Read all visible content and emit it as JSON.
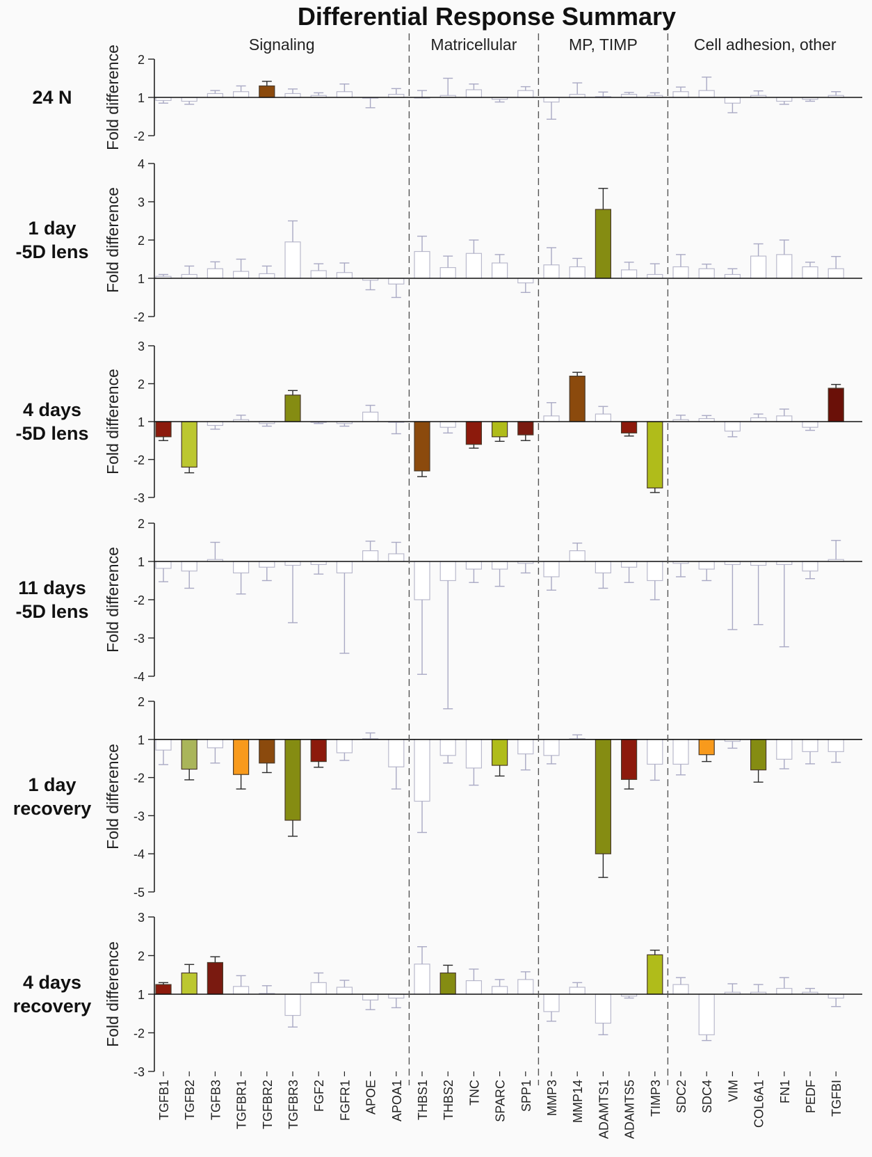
{
  "chart_data": {
    "type": "bar",
    "title": "Differential Response Summary",
    "ylabel": "Fold difference",
    "grid": false,
    "groups": [
      {
        "label": "Signaling",
        "count": 10
      },
      {
        "label": "Matricellular",
        "count": 5
      },
      {
        "label": "MP, TIMP",
        "count": 5
      },
      {
        "label": "Cell adhesion, other",
        "count": 7
      }
    ],
    "categories": [
      "TGFB1",
      "TGFB2",
      "TGFB3",
      "TGFBR1",
      "TGFBR2",
      "TGFBR3",
      "FGF2",
      "FGFR1",
      "APOE",
      "APOA1",
      "THBS1",
      "THBS2",
      "TNC",
      "SPARC",
      "SPP1",
      "MMP3",
      "MMP14",
      "ADAMTS1",
      "ADAMTS5",
      "TIMP3",
      "SDC2",
      "SDC4",
      "VIM",
      "COL6A1",
      "FN1",
      "PEDF",
      "TGFBI"
    ],
    "panels": [
      {
        "label": [
          "24 N"
        ],
        "ticks": [
          2,
          1,
          -2
        ],
        "values": [
          -0.08,
          -0.1,
          0.1,
          0.15,
          0.3,
          0.1,
          0.05,
          0.15,
          -0.02,
          0.08,
          0.0,
          0.05,
          0.2,
          -0.05,
          0.18,
          -0.12,
          0.08,
          0.02,
          0.08,
          0.05,
          0.15,
          0.18,
          -0.15,
          0.05,
          -0.1,
          -0.05,
          0.05
        ],
        "errors": [
          0.07,
          0.08,
          0.08,
          0.15,
          0.12,
          0.12,
          0.07,
          0.2,
          0.25,
          0.15,
          0.18,
          0.45,
          0.15,
          0.07,
          0.1,
          0.45,
          0.3,
          0.12,
          0.05,
          0.07,
          0.12,
          0.35,
          0.25,
          0.12,
          0.08,
          0.05,
          0.1
        ],
        "significant": [
          false,
          false,
          false,
          false,
          true,
          false,
          false,
          false,
          false,
          false,
          false,
          false,
          false,
          false,
          false,
          false,
          false,
          false,
          false,
          false,
          false,
          false,
          false,
          false,
          false,
          false,
          false
        ],
        "colors": [
          "",
          "",
          "",
          "",
          "#8b4a0d",
          "",
          "",
          "",
          "",
          "",
          "",
          "",
          "",
          "",
          "",
          "",
          "",
          "",
          "",
          "",
          "",
          "",
          "",
          "",
          "",
          "",
          ""
        ]
      },
      {
        "label": [
          "1 day",
          "-5D lens"
        ],
        "ticks": [
          4,
          3,
          2,
          1,
          -2
        ],
        "values": [
          0.05,
          0.1,
          0.25,
          0.18,
          0.12,
          0.95,
          0.2,
          0.15,
          -0.05,
          -0.15,
          0.7,
          0.28,
          0.65,
          0.4,
          -0.12,
          0.35,
          0.3,
          1.8,
          0.22,
          0.1,
          0.3,
          0.25,
          0.1,
          0.58,
          0.62,
          0.3,
          0.25
        ],
        "errors": [
          0.05,
          0.22,
          0.18,
          0.32,
          0.2,
          0.55,
          0.18,
          0.25,
          0.25,
          0.35,
          0.4,
          0.3,
          0.35,
          0.22,
          0.25,
          0.45,
          0.22,
          0.55,
          0.2,
          0.28,
          0.32,
          0.12,
          0.15,
          0.32,
          0.38,
          0.12,
          0.32
        ],
        "significant": [
          false,
          false,
          false,
          false,
          false,
          false,
          false,
          false,
          false,
          false,
          false,
          false,
          false,
          false,
          false,
          false,
          false,
          true,
          false,
          false,
          false,
          false,
          false,
          false,
          false,
          false,
          false
        ],
        "colors": [
          "",
          "",
          "",
          "",
          "",
          "",
          "",
          "",
          "",
          "",
          "",
          "",
          "",
          "",
          "",
          "",
          "",
          "#858c12",
          "",
          "",
          "",
          "",
          "",
          "",
          "",
          "",
          ""
        ]
      },
      {
        "label": [
          "4 days",
          "-5D lens"
        ],
        "ticks": [
          3,
          2,
          1,
          -2,
          -3
        ],
        "values": [
          -0.4,
          -1.2,
          -0.1,
          0.05,
          -0.05,
          0.7,
          -0.02,
          -0.05,
          0.25,
          -0.02,
          -1.3,
          -0.15,
          -0.6,
          -0.4,
          -0.35,
          0.15,
          1.2,
          0.2,
          -0.3,
          -1.75,
          0.05,
          0.08,
          -0.25,
          0.1,
          0.15,
          -0.15,
          0.88
        ],
        "errors": [
          0.1,
          0.15,
          0.1,
          0.12,
          0.07,
          0.12,
          0.03,
          0.07,
          0.18,
          0.3,
          0.15,
          0.15,
          0.1,
          0.12,
          0.15,
          0.35,
          0.1,
          0.2,
          0.08,
          0.12,
          0.12,
          0.08,
          0.15,
          0.1,
          0.18,
          0.08,
          0.1
        ],
        "significant": [
          true,
          true,
          false,
          false,
          false,
          true,
          false,
          false,
          false,
          false,
          true,
          false,
          true,
          true,
          true,
          false,
          true,
          false,
          true,
          true,
          false,
          false,
          false,
          false,
          false,
          false,
          true
        ],
        "colors": [
          "#8c1a0c",
          "#bcc730",
          "",
          "",
          "",
          "#858c12",
          "",
          "",
          "",
          "",
          "#8b4a0d",
          "",
          "#8c1a0c",
          "#b0bc1a",
          "#7a1a10",
          "",
          "#8b4a0d",
          "",
          "#8c1a0c",
          "#b0bc1a",
          "",
          "",
          "",
          "",
          "",
          "",
          "#6a1008"
        ]
      },
      {
        "label": [
          "11 days",
          "-5D lens"
        ],
        "ticks": [
          2,
          1,
          -2,
          -3,
          -4
        ],
        "values": [
          -0.18,
          -0.25,
          0.05,
          -0.3,
          -0.15,
          -0.1,
          -0.08,
          -0.3,
          0.28,
          0.2,
          -1.0,
          -0.5,
          -0.2,
          -0.2,
          -0.05,
          -0.4,
          0.28,
          -0.3,
          -0.15,
          -0.5,
          -0.05,
          -0.2,
          -0.08,
          -0.1,
          -0.08,
          -0.25,
          0.05
        ],
        "errors": [
          0.35,
          0.45,
          0.45,
          0.55,
          0.35,
          1.5,
          0.25,
          2.1,
          0.25,
          0.3,
          1.95,
          3.35,
          0.35,
          0.45,
          0.25,
          0.35,
          0.2,
          0.4,
          0.4,
          0.5,
          0.35,
          0.3,
          1.7,
          1.55,
          2.15,
          0.2,
          0.5
        ],
        "significant": [
          false,
          false,
          false,
          false,
          false,
          false,
          false,
          false,
          false,
          false,
          false,
          false,
          false,
          false,
          false,
          false,
          false,
          false,
          false,
          false,
          false,
          false,
          false,
          false,
          false,
          false,
          false
        ],
        "colors": [
          "",
          "",
          "",
          "",
          "",
          "",
          "",
          "",
          "",
          "",
          "",
          "",
          "",
          "",
          "",
          "",
          "",
          "",
          "",
          "",
          "",
          "",
          "",
          "",
          "",
          "",
          ""
        ]
      },
      {
        "label": [
          "1 day",
          "recovery"
        ],
        "ticks": [
          2,
          1,
          -2,
          -3,
          -4,
          -5
        ],
        "values": [
          -0.28,
          -0.78,
          -0.22,
          -0.92,
          -0.62,
          -2.12,
          -0.58,
          -0.35,
          0.02,
          -0.72,
          -1.62,
          -0.42,
          -0.75,
          -0.68,
          -0.38,
          -0.42,
          0.02,
          -3.0,
          -1.05,
          -0.65,
          -0.65,
          -0.4,
          -0.05,
          -0.8,
          -0.52,
          -0.32,
          -0.32
        ],
        "errors": [
          0.38,
          0.28,
          0.4,
          0.38,
          0.25,
          0.42,
          0.15,
          0.2,
          0.15,
          0.58,
          0.82,
          0.2,
          0.45,
          0.28,
          0.42,
          0.22,
          0.1,
          0.62,
          0.25,
          0.42,
          0.28,
          0.18,
          0.18,
          0.32,
          0.25,
          0.32,
          0.28
        ],
        "significant": [
          false,
          true,
          false,
          true,
          true,
          true,
          true,
          false,
          false,
          false,
          false,
          false,
          false,
          true,
          false,
          false,
          false,
          true,
          true,
          false,
          false,
          true,
          false,
          true,
          false,
          false,
          false
        ],
        "colors": [
          "",
          "#aab55a",
          "",
          "#f89a1c",
          "#8b4a0d",
          "#858c12",
          "#8c1a0c",
          "",
          "",
          "",
          "",
          "",
          "",
          "#b0bc1a",
          "",
          "",
          "",
          "#858c12",
          "#8c1a0c",
          "",
          "",
          "#f89a1c",
          "",
          "#858c12",
          "",
          "",
          ""
        ]
      },
      {
        "label": [
          "4 days",
          "recovery"
        ],
        "ticks": [
          3,
          2,
          1,
          -2,
          -3
        ],
        "values": [
          0.25,
          0.55,
          0.82,
          0.2,
          0.02,
          -0.55,
          0.3,
          0.18,
          -0.15,
          -0.1,
          0.78,
          0.55,
          0.35,
          0.2,
          0.38,
          -0.45,
          0.18,
          -0.75,
          -0.05,
          1.02,
          0.25,
          -1.05,
          0.05,
          0.05,
          0.15,
          0.05,
          -0.1
        ],
        "errors": [
          0.05,
          0.22,
          0.15,
          0.28,
          0.2,
          0.3,
          0.25,
          0.18,
          0.25,
          0.25,
          0.45,
          0.2,
          0.3,
          0.18,
          0.2,
          0.25,
          0.12,
          0.3,
          0.05,
          0.12,
          0.18,
          0.15,
          0.22,
          0.2,
          0.28,
          0.1,
          0.22
        ],
        "significant": [
          true,
          true,
          true,
          false,
          false,
          false,
          false,
          false,
          false,
          false,
          false,
          true,
          false,
          false,
          false,
          false,
          false,
          false,
          false,
          true,
          false,
          false,
          false,
          false,
          false,
          false,
          false
        ],
        "colors": [
          "#8c1a0c",
          "#bcc730",
          "#7a1a10",
          "",
          "",
          "",
          "",
          "",
          "",
          "",
          "",
          "#858c12",
          "",
          "",
          "",
          "",
          "",
          "",
          "",
          "#b0bc1a",
          "",
          "",
          "",
          "",
          "",
          "",
          ""
        ]
      }
    ]
  }
}
